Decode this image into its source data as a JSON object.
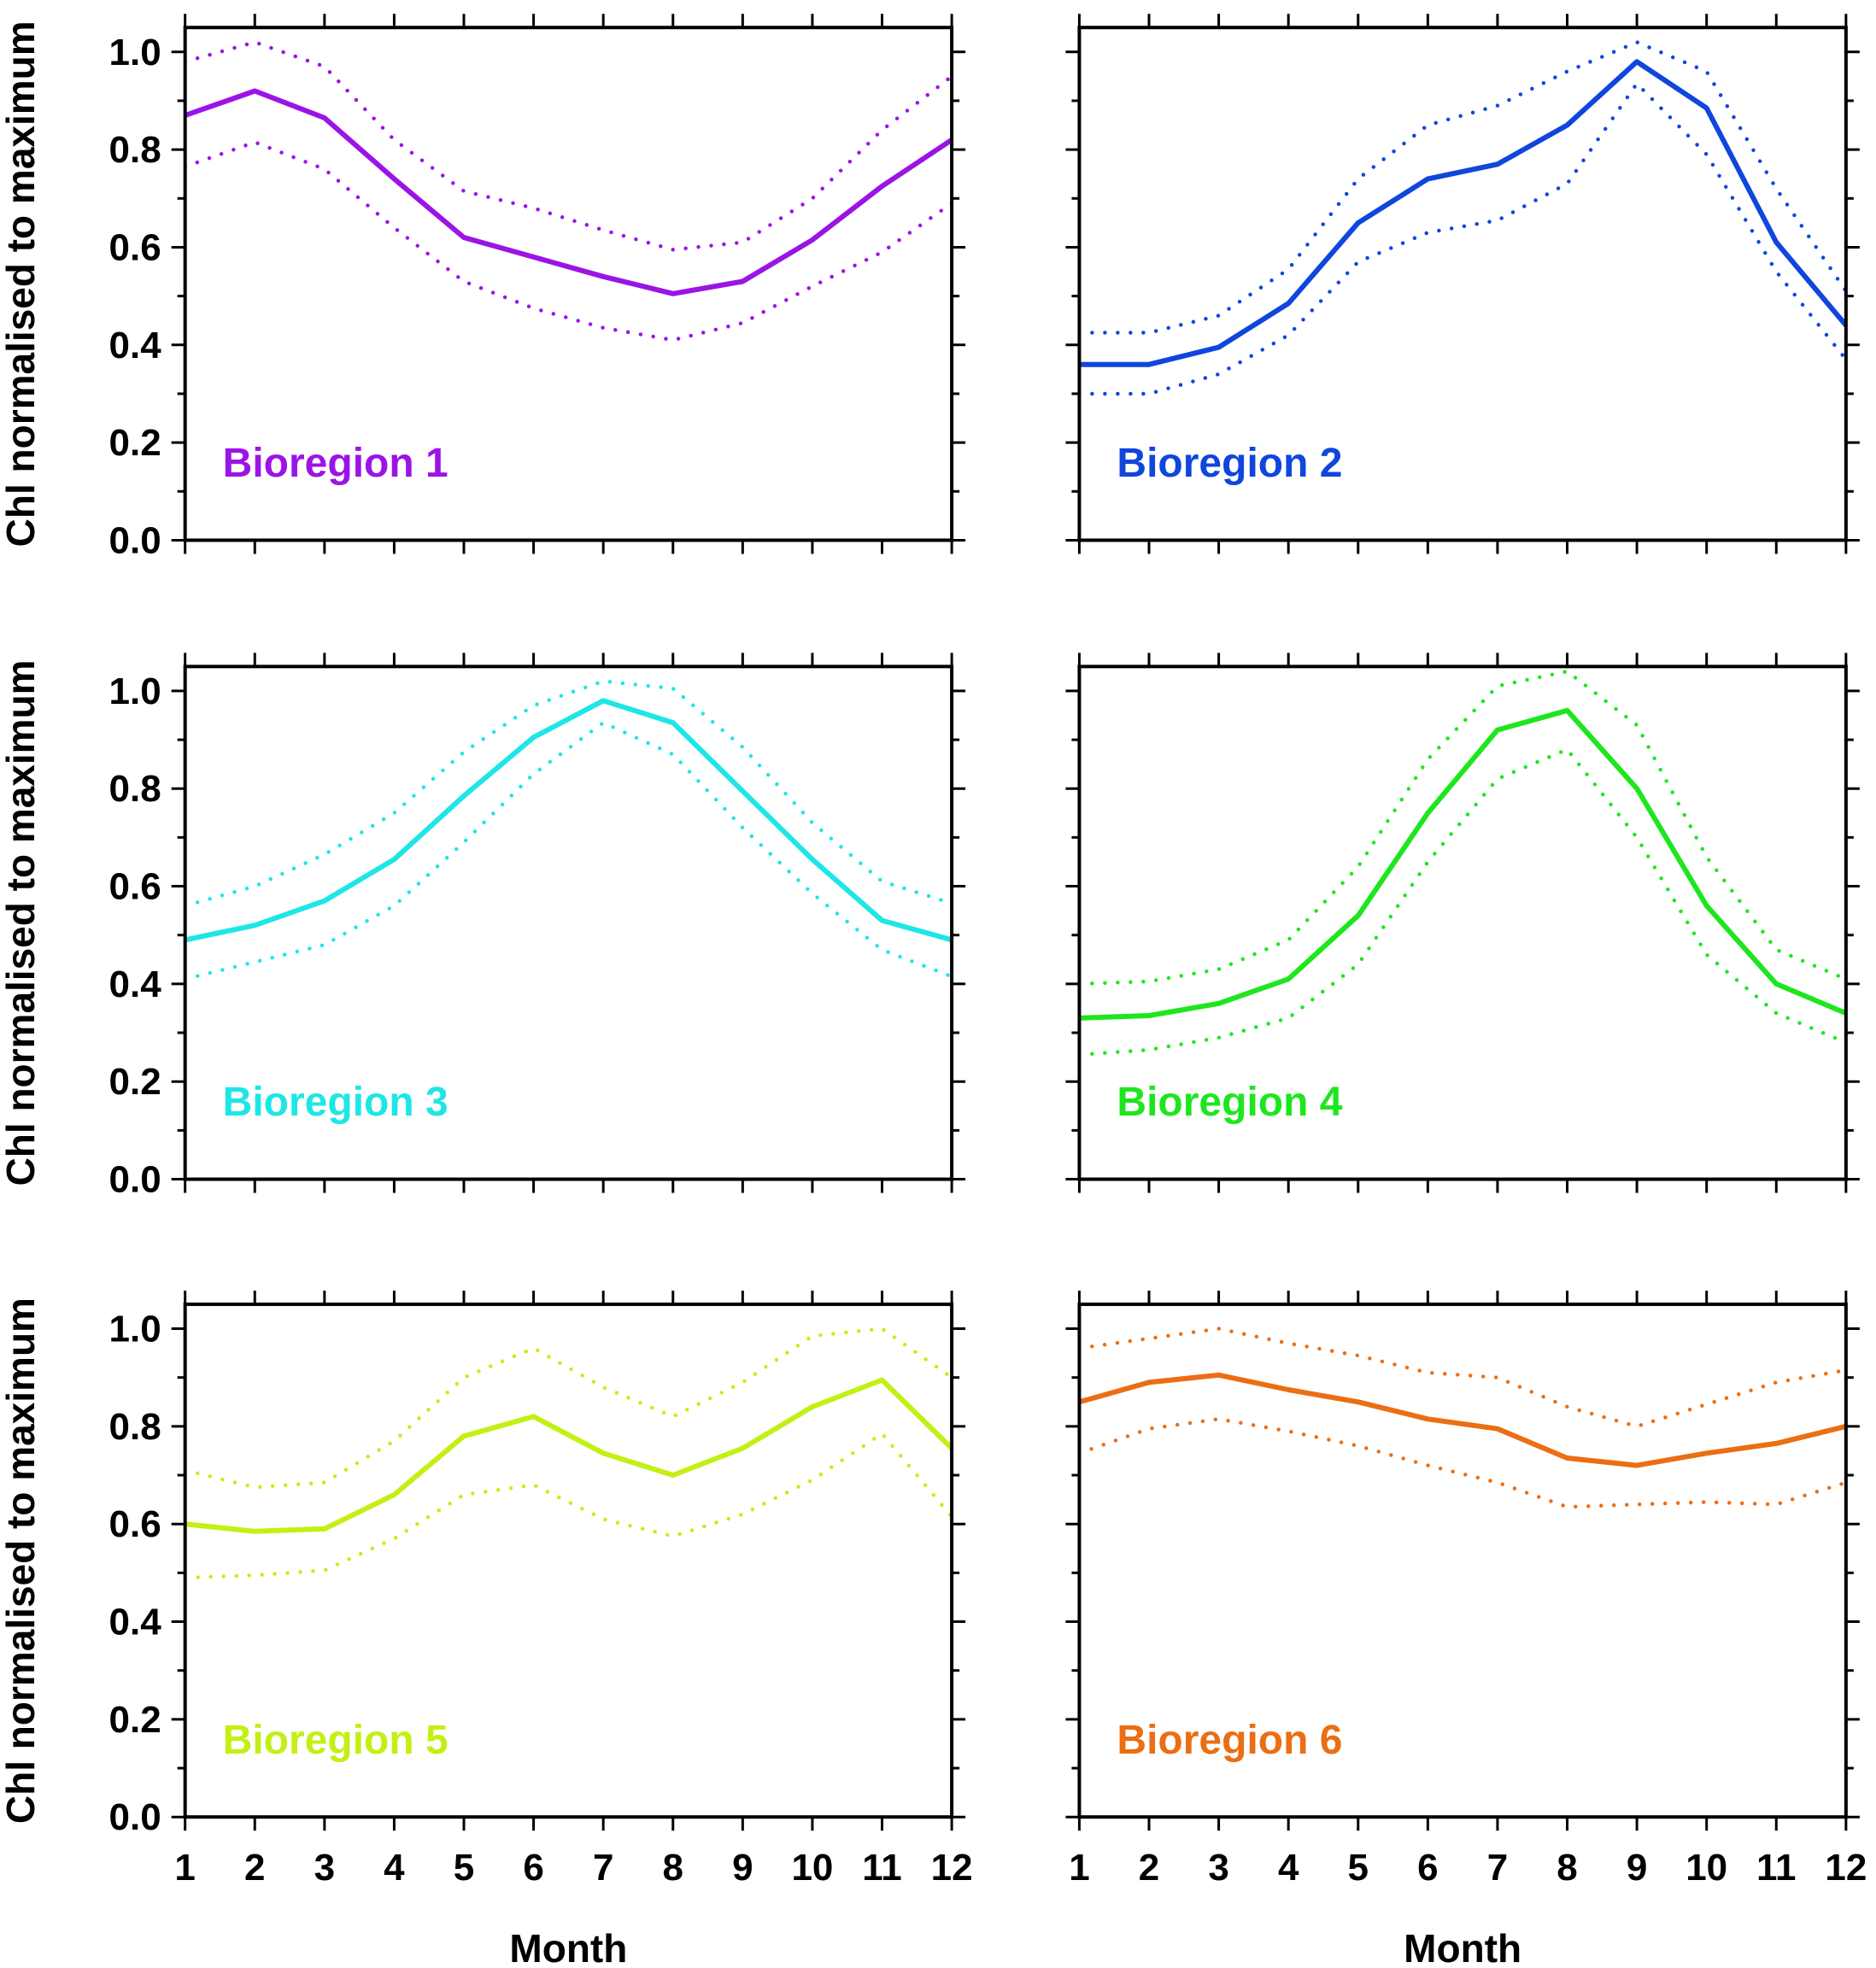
{
  "figure": {
    "ylabel": "Chl normalised to maximum",
    "xlabel": "Month"
  },
  "chart_data": [
    {
      "type": "line",
      "label": "Bioregion 1",
      "color": "#9b14e6",
      "x": [
        1,
        2,
        3,
        4,
        5,
        6,
        7,
        8,
        9,
        10,
        11,
        12
      ],
      "series": [
        {
          "role": "mean",
          "values": [
            0.87,
            0.92,
            0.865,
            0.74,
            0.62,
            0.58,
            0.54,
            0.505,
            0.53,
            0.615,
            0.725,
            0.82
          ]
        },
        {
          "role": "upper",
          "values": [
            0.98,
            1.02,
            0.97,
            0.82,
            0.715,
            0.68,
            0.635,
            0.595,
            0.61,
            0.7,
            0.84,
            0.95
          ]
        },
        {
          "role": "lower",
          "values": [
            0.765,
            0.815,
            0.76,
            0.64,
            0.53,
            0.475,
            0.435,
            0.41,
            0.445,
            0.52,
            0.59,
            0.69
          ]
        }
      ],
      "xlim": [
        1,
        12
      ],
      "ylim": [
        0,
        1.05
      ],
      "yticks": [
        "0.0",
        "0.2",
        "0.4",
        "0.6",
        "0.8",
        "1.0"
      ],
      "xticks": [],
      "show_ylabel": true,
      "show_xlabel": false
    },
    {
      "type": "line",
      "label": "Bioregion 2",
      "color": "#0f46dc",
      "x": [
        1,
        2,
        3,
        4,
        5,
        6,
        7,
        8,
        9,
        10,
        11,
        12
      ],
      "series": [
        {
          "role": "mean",
          "values": [
            0.36,
            0.36,
            0.395,
            0.485,
            0.65,
            0.74,
            0.77,
            0.85,
            0.98,
            0.885,
            0.61,
            0.44
          ]
        },
        {
          "role": "upper",
          "values": [
            0.425,
            0.425,
            0.46,
            0.555,
            0.74,
            0.85,
            0.89,
            0.96,
            1.02,
            0.96,
            0.72,
            0.51
          ]
        },
        {
          "role": "lower",
          "values": [
            0.3,
            0.3,
            0.34,
            0.42,
            0.57,
            0.63,
            0.655,
            0.73,
            0.935,
            0.79,
            0.55,
            0.37
          ]
        }
      ],
      "xlim": [
        1,
        12
      ],
      "ylim": [
        0,
        1.05
      ],
      "yticks": [],
      "xticks": [],
      "show_ylabel": false,
      "show_xlabel": false
    },
    {
      "type": "line",
      "label": "Bioregion 3",
      "color": "#1ee6e6",
      "x": [
        1,
        2,
        3,
        4,
        5,
        6,
        7,
        8,
        9,
        10,
        11,
        12
      ],
      "series": [
        {
          "role": "mean",
          "values": [
            0.49,
            0.52,
            0.57,
            0.655,
            0.785,
            0.905,
            0.98,
            0.935,
            0.795,
            0.655,
            0.53,
            0.49
          ]
        },
        {
          "role": "upper",
          "values": [
            0.56,
            0.6,
            0.665,
            0.75,
            0.875,
            0.97,
            1.02,
            1.005,
            0.885,
            0.73,
            0.61,
            0.565
          ]
        },
        {
          "role": "lower",
          "values": [
            0.41,
            0.445,
            0.48,
            0.56,
            0.69,
            0.83,
            0.935,
            0.87,
            0.72,
            0.585,
            0.47,
            0.415
          ]
        }
      ],
      "xlim": [
        1,
        12
      ],
      "ylim": [
        0,
        1.05
      ],
      "yticks": [
        "0.0",
        "0.2",
        "0.4",
        "0.6",
        "0.8",
        "1.0"
      ],
      "xticks": [],
      "show_ylabel": true,
      "show_xlabel": false
    },
    {
      "type": "line",
      "label": "Bioregion 4",
      "color": "#1ee61e",
      "x": [
        1,
        2,
        3,
        4,
        5,
        6,
        7,
        8,
        9,
        10,
        11,
        12
      ],
      "series": [
        {
          "role": "mean",
          "values": [
            0.33,
            0.335,
            0.36,
            0.41,
            0.54,
            0.75,
            0.92,
            0.96,
            0.8,
            0.56,
            0.4,
            0.34
          ]
        },
        {
          "role": "upper",
          "values": [
            0.4,
            0.405,
            0.43,
            0.49,
            0.64,
            0.86,
            1.01,
            1.04,
            0.93,
            0.66,
            0.47,
            0.41
          ]
        },
        {
          "role": "lower",
          "values": [
            0.255,
            0.265,
            0.29,
            0.33,
            0.44,
            0.65,
            0.82,
            0.88,
            0.7,
            0.46,
            0.34,
            0.28
          ]
        }
      ],
      "xlim": [
        1,
        12
      ],
      "ylim": [
        0,
        1.05
      ],
      "yticks": [],
      "xticks": [],
      "show_ylabel": false,
      "show_xlabel": false
    },
    {
      "type": "line",
      "label": "Bioregion 5",
      "color": "#c3f014",
      "x": [
        1,
        2,
        3,
        4,
        5,
        6,
        7,
        8,
        9,
        10,
        11,
        12
      ],
      "series": [
        {
          "role": "mean",
          "values": [
            0.6,
            0.585,
            0.59,
            0.66,
            0.78,
            0.82,
            0.745,
            0.7,
            0.755,
            0.84,
            0.895,
            0.755
          ]
        },
        {
          "role": "upper",
          "values": [
            0.71,
            0.675,
            0.685,
            0.77,
            0.9,
            0.96,
            0.88,
            0.82,
            0.89,
            0.985,
            1.0,
            0.9
          ]
        },
        {
          "role": "lower",
          "values": [
            0.49,
            0.495,
            0.505,
            0.57,
            0.66,
            0.68,
            0.61,
            0.575,
            0.62,
            0.69,
            0.785,
            0.615
          ]
        }
      ],
      "xlim": [
        1,
        12
      ],
      "ylim": [
        0,
        1.05
      ],
      "yticks": [
        "0.0",
        "0.2",
        "0.4",
        "0.6",
        "0.8",
        "1.0"
      ],
      "xticks": [
        "1",
        "2",
        "3",
        "4",
        "5",
        "6",
        "7",
        "8",
        "9",
        "10",
        "11",
        "12"
      ],
      "show_ylabel": true,
      "show_xlabel": true
    },
    {
      "type": "line",
      "label": "Bioregion 6",
      "color": "#eb6e14",
      "x": [
        1,
        2,
        3,
        4,
        5,
        6,
        7,
        8,
        9,
        10,
        11,
        12
      ],
      "series": [
        {
          "role": "mean",
          "values": [
            0.85,
            0.89,
            0.905,
            0.875,
            0.85,
            0.815,
            0.795,
            0.735,
            0.72,
            0.745,
            0.765,
            0.8
          ]
        },
        {
          "role": "upper",
          "values": [
            0.96,
            0.98,
            1.0,
            0.97,
            0.945,
            0.91,
            0.9,
            0.84,
            0.8,
            0.845,
            0.89,
            0.915
          ]
        },
        {
          "role": "lower",
          "values": [
            0.745,
            0.795,
            0.815,
            0.79,
            0.76,
            0.72,
            0.685,
            0.635,
            0.64,
            0.645,
            0.64,
            0.685
          ]
        }
      ],
      "xlim": [
        1,
        12
      ],
      "ylim": [
        0,
        1.05
      ],
      "yticks": [],
      "xticks": [
        "1",
        "2",
        "3",
        "4",
        "5",
        "6",
        "7",
        "8",
        "9",
        "10",
        "11",
        "12"
      ],
      "show_ylabel": false,
      "show_xlabel": true
    }
  ]
}
